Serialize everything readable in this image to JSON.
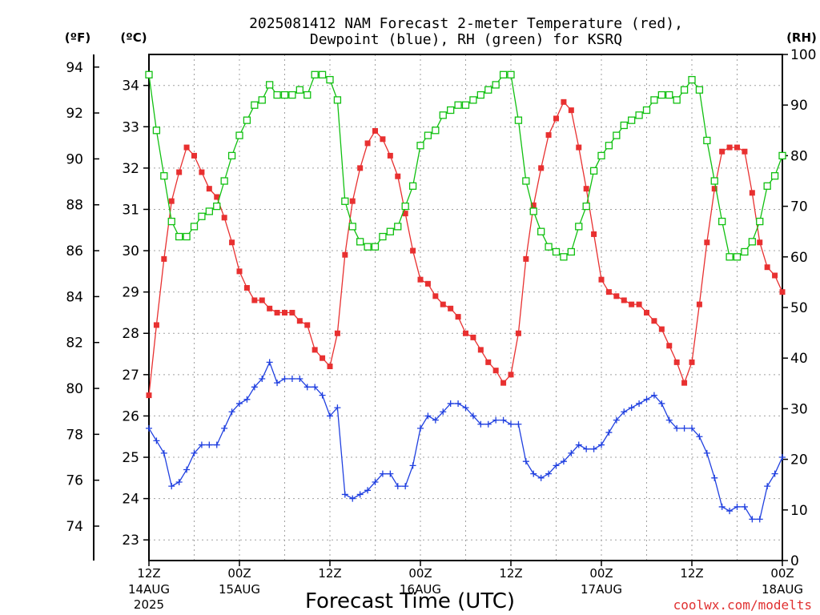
{
  "chart_data": {
    "type": "line",
    "title_line1": "2025081412 NAM Forecast 2-meter Temperature (red),",
    "title_line2": "Dewpoint (blue), RH (green) for KSRQ",
    "xlabel": "Forecast Time (UTC)",
    "credit": "coolwx.com/modelts",
    "units": {
      "f": "(ºF)",
      "c": "(ºC)",
      "rh": "(RH)"
    },
    "x_range_hours": [
      0,
      84
    ],
    "left_axis_c": {
      "min": 22.5,
      "max": 34.75,
      "ticks": [
        23,
        24,
        25,
        26,
        27,
        28,
        29,
        30,
        31,
        32,
        33,
        34
      ]
    },
    "far_left_axis_f": {
      "ticks": [
        74,
        76,
        78,
        80,
        82,
        84,
        86,
        88,
        90,
        92,
        94
      ]
    },
    "right_axis_rh": {
      "min": 0,
      "max": 100,
      "ticks": [
        0,
        10,
        20,
        30,
        40,
        50,
        60,
        70,
        80,
        90,
        100
      ]
    },
    "x_ticks": [
      {
        "hour": 0,
        "time": "12Z",
        "date": "14AUG",
        "year": "2025"
      },
      {
        "hour": 12,
        "time": "00Z",
        "date": "15AUG",
        "year": ""
      },
      {
        "hour": 24,
        "time": "12Z",
        "date": "",
        "year": ""
      },
      {
        "hour": 36,
        "time": "00Z",
        "date": "16AUG",
        "year": ""
      },
      {
        "hour": 48,
        "time": "12Z",
        "date": "",
        "year": ""
      },
      {
        "hour": 60,
        "time": "00Z",
        "date": "17AUG",
        "year": ""
      },
      {
        "hour": 72,
        "time": "12Z",
        "date": "",
        "year": ""
      },
      {
        "hour": 84,
        "time": "00Z",
        "date": "18AUG",
        "year": ""
      }
    ],
    "series": [
      {
        "name": "Temperature",
        "units": "C",
        "color": "#e83030",
        "marker": "filled-square",
        "values": [
          26.5,
          28.2,
          29.8,
          31.2,
          31.9,
          32.5,
          32.3,
          31.9,
          31.5,
          31.3,
          30.8,
          30.2,
          29.5,
          29.1,
          28.8,
          28.8,
          28.6,
          28.5,
          28.5,
          28.5,
          28.3,
          28.2,
          27.6,
          27.4,
          27.2,
          28.0,
          29.9,
          31.2,
          32.0,
          32.6,
          32.9,
          32.7,
          32.3,
          31.8,
          30.9,
          30.0,
          29.3,
          29.2,
          28.9,
          28.7,
          28.6,
          28.4,
          28.0,
          27.9,
          27.6,
          27.3,
          27.1,
          26.8,
          27.0,
          28.0,
          29.8,
          31.1,
          32.0,
          32.8,
          33.2,
          33.6,
          33.4,
          32.5,
          31.5,
          30.4,
          29.3,
          29.0,
          28.9,
          28.8,
          28.7,
          28.7,
          28.5,
          28.3,
          28.1,
          27.7,
          27.3,
          26.8,
          27.3,
          28.7,
          30.2,
          31.5,
          32.4,
          32.5,
          32.5,
          32.4,
          31.4,
          30.2,
          29.6,
          29.4,
          29.0
        ]
      },
      {
        "name": "Dewpoint",
        "units": "C",
        "color": "#2040e0",
        "marker": "plus",
        "values": [
          25.7,
          25.4,
          25.1,
          24.3,
          24.4,
          24.7,
          25.1,
          25.3,
          25.3,
          25.3,
          25.7,
          26.1,
          26.3,
          26.4,
          26.7,
          26.9,
          27.3,
          26.8,
          26.9,
          26.9,
          26.9,
          26.7,
          26.7,
          26.5,
          26.0,
          26.2,
          24.1,
          24.0,
          24.1,
          24.2,
          24.4,
          24.6,
          24.6,
          24.3,
          24.3,
          24.8,
          25.7,
          26.0,
          25.9,
          26.1,
          26.3,
          26.3,
          26.2,
          26.0,
          25.8,
          25.8,
          25.9,
          25.9,
          25.8,
          25.8,
          24.9,
          24.6,
          24.5,
          24.6,
          24.8,
          24.9,
          25.1,
          25.3,
          25.2,
          25.2,
          25.3,
          25.6,
          25.9,
          26.1,
          26.2,
          26.3,
          26.4,
          26.5,
          26.3,
          25.9,
          25.7,
          25.7,
          25.7,
          25.5,
          25.1,
          24.5,
          23.8,
          23.7,
          23.8,
          23.8,
          23.5,
          23.5,
          24.3,
          24.6,
          25.0
        ]
      },
      {
        "name": "RH",
        "units": "%",
        "color": "#10c010",
        "marker": "open-square",
        "values": [
          96,
          85,
          76,
          67,
          64,
          64,
          66,
          68,
          69,
          70,
          75,
          80,
          84,
          87,
          90,
          91,
          94,
          92,
          92,
          92,
          93,
          92,
          96,
          96,
          95,
          91,
          71,
          66,
          63,
          62,
          62,
          64,
          65,
          66,
          70,
          74,
          82,
          84,
          85,
          88,
          89,
          90,
          90,
          91,
          92,
          93,
          94,
          96,
          96,
          87,
          75,
          69,
          65,
          62,
          61,
          60,
          61,
          66,
          70,
          77,
          80,
          82,
          84,
          86,
          87,
          88,
          89,
          91,
          92,
          92,
          91,
          93,
          95,
          93,
          83,
          75,
          67,
          60,
          60,
          61,
          63,
          67,
          74,
          76,
          80
        ]
      }
    ]
  }
}
